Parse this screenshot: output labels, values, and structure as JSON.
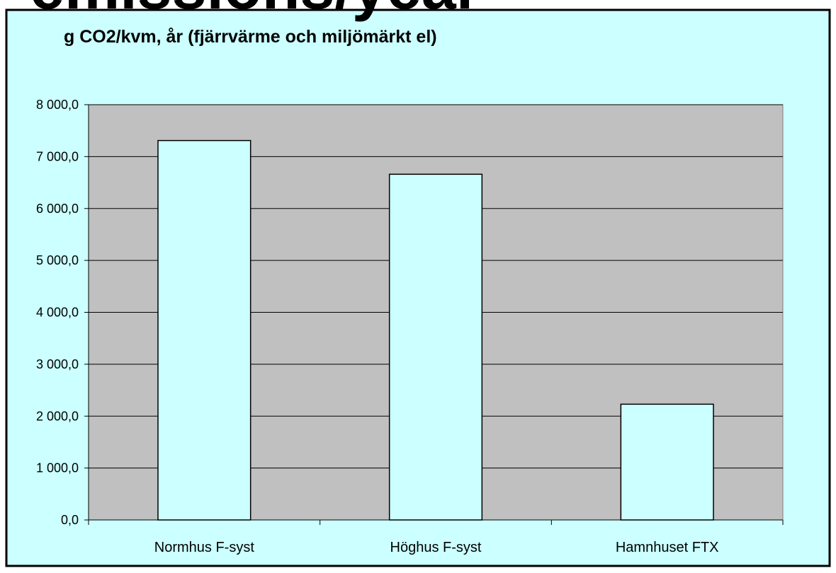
{
  "chart_data": {
    "type": "bar",
    "heading": "emissions/year",
    "title": "g CO2/kvm, år (fjärrvärme och miljömärkt el)",
    "categories": [
      "Normhus F-syst",
      "Höghus F-syst",
      "Hamnhuset FTX"
    ],
    "values": [
      7310,
      6660,
      2230
    ],
    "color": "#ccffff",
    "ylim": [
      0,
      8000
    ],
    "yticks": [
      {
        "value": 0,
        "label": "0,0"
      },
      {
        "value": 1000,
        "label": "1 000,0"
      },
      {
        "value": 2000,
        "label": "2 000,0"
      },
      {
        "value": 3000,
        "label": "3 000,0"
      },
      {
        "value": 4000,
        "label": "4 000,0"
      },
      {
        "value": 5000,
        "label": "5 000,0"
      },
      {
        "value": 6000,
        "label": "6 000,0"
      },
      {
        "value": 7000,
        "label": "7 000,0"
      },
      {
        "value": 8000,
        "label": "8 000,0"
      }
    ],
    "grid": true
  }
}
